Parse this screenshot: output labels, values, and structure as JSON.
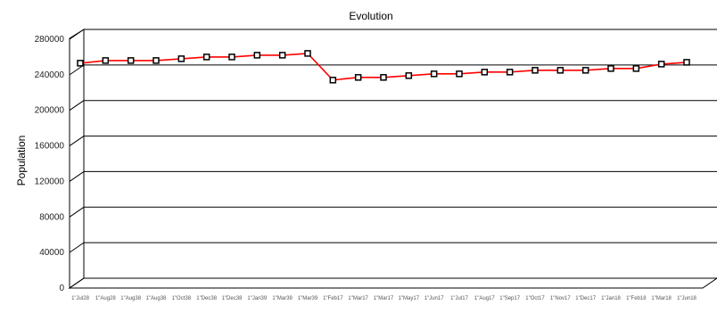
{
  "chart_data": {
    "type": "line",
    "title": "Evolution",
    "xlabel": "",
    "ylabel": "Population",
    "ylim": [
      0,
      280000
    ],
    "y_ticks": [
      "0",
      "40000",
      "80000",
      "120000",
      "160000",
      "200000",
      "240000",
      "280000"
    ],
    "categories": [
      "1\"Jul28",
      "1\"Aug28",
      "1\"Aug38",
      "1\"Aug38",
      "1\"Oct38",
      "1\"Dec38",
      "1\"Dec38",
      "1\"Jan39",
      "1\"Mar39",
      "1\"Mar39",
      "1\"Feb17",
      "1\"Mar17",
      "1\"Mar17",
      "1\"May17",
      "1\"Jun17",
      "1\"Jul17",
      "1\"Aug17",
      "1\"Sep17",
      "1\"Oct17",
      "1\"Nov17",
      "1\"Dec17",
      "1\"Jan18",
      "1\"Feb18",
      "1\"Mar18",
      "1\"Jun18"
    ],
    "series": [
      {
        "values": [
          242000,
          245000,
          245000,
          245000,
          247000,
          249000,
          249000,
          251000,
          251000,
          253000,
          223000,
          226000,
          226000,
          228000,
          230000,
          230000,
          232000,
          232000,
          234000,
          234000,
          234000,
          236000,
          236000,
          241000,
          243000
        ],
        "color": "#ff0000"
      }
    ],
    "grid": true,
    "legend": "none"
  }
}
